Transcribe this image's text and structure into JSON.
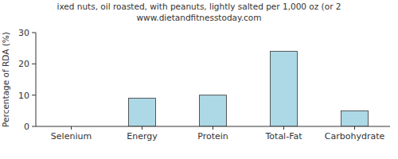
{
  "chart_data": {
    "type": "bar",
    "title": "ixed nuts, oil roasted, with peanuts, lightly salted per 1,000 oz (or 2",
    "subtitle": "www.dietandfitnesstoday.com",
    "y_label": "Percentage of RDA (%)",
    "categories": [
      "Selenium",
      "Energy",
      "Protein",
      "Total-Fat",
      "Carbohydrate"
    ],
    "values": [
      0,
      9,
      10,
      24,
      5
    ],
    "color": "#add8e6",
    "ylim": [
      0,
      30
    ],
    "yticks": [
      0,
      10,
      20,
      30
    ],
    "grid": false
  }
}
